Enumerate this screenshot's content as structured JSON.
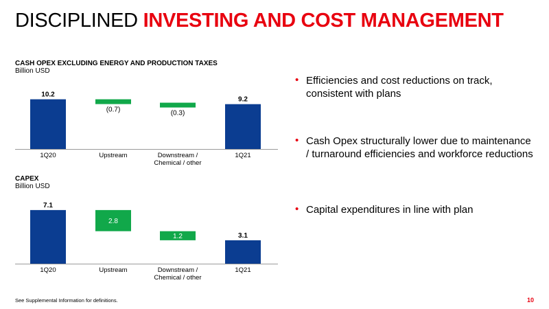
{
  "title": {
    "part1": "DISCIPLINED ",
    "part2": "INVESTING AND COST MANAGEMENT"
  },
  "colors": {
    "blue": "#0b3d91",
    "green": "#11a84a",
    "red": "#e8000f"
  },
  "chart_data": [
    {
      "type": "bar",
      "subtype": "waterfall",
      "title": "CASH OPEX EXCLUDING ENERGY AND PRODUCTION TAXES",
      "unit": "Billion USD",
      "categories": [
        "1Q20",
        "Upstream",
        "Downstream /\nChemical / other",
        "1Q21"
      ],
      "values": [
        10.2,
        -0.7,
        -0.3,
        9.2
      ],
      "labels": [
        "10.2",
        "(0.7)",
        "(0.3)",
        "9.2"
      ],
      "kinds": [
        "total",
        "delta",
        "delta",
        "total"
      ]
    },
    {
      "type": "bar",
      "subtype": "waterfall",
      "title": "CAPEX",
      "unit": "Billion USD",
      "categories": [
        "1Q20",
        "Upstream",
        "Downstream /\nChemical / other",
        "1Q21"
      ],
      "values": [
        7.1,
        -2.8,
        -1.2,
        3.1
      ],
      "labels": [
        "7.1",
        "2.8",
        "1.2",
        "3.1"
      ],
      "kinds": [
        "total",
        "delta",
        "delta",
        "total"
      ]
    }
  ],
  "bullets": [
    "Efficiencies and cost reductions on track, consistent with plans",
    "Cash Opex structurally lower due to maintenance / turnaround efficiencies and workforce reductions",
    "Capital expenditures in line with plan"
  ],
  "footnote": "See Supplemental Information for definitions.",
  "page_number": "10"
}
